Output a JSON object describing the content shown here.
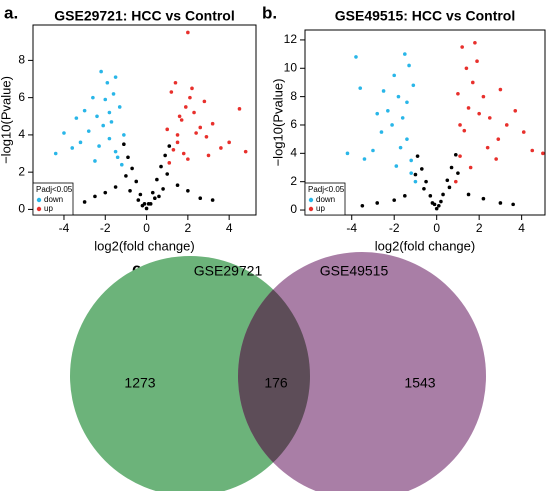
{
  "chart_data": [
    {
      "type": "scatter",
      "panel_label": "a.",
      "title": "GSE29721: HCC vs Control",
      "x_label": "log2(fold change)",
      "y_label": "−log10(Pvalue)",
      "xlim": [
        -5.5,
        5.3
      ],
      "ylim": [
        -0.3,
        9.9
      ],
      "xticks": [
        -4,
        -2,
        0,
        2,
        4
      ],
      "yticks": [
        0,
        2,
        4,
        6,
        8
      ],
      "legend_title": "Padj<0.05",
      "legend": "bottom-left",
      "series": [
        {
          "color": "#000000",
          "x": [
            -1.1,
            -0.9,
            -0.7,
            -0.5,
            -0.3,
            -0.1,
            0,
            0.1,
            0.3,
            0.5,
            0.7,
            0.9,
            1.1,
            -1.5,
            -2,
            -2.5,
            1.5,
            2,
            2.6,
            -0.8,
            0.8,
            -0.4,
            0.4,
            -1.0,
            1.0,
            -3,
            3.2,
            -0.2,
            0.2,
            0.6
          ],
          "values": [
            3.5,
            2.8,
            2.2,
            1.5,
            0.8,
            0.3,
            0.05,
            0.3,
            0.9,
            1.6,
            2.3,
            2.9,
            3.4,
            1.2,
            0.9,
            0.7,
            1.3,
            1.0,
            0.6,
            1.0,
            1.1,
            0.5,
            0.6,
            1.8,
            1.9,
            0.4,
            0.5,
            0.2,
            0.3,
            0.7
          ]
        },
        {
          "name": "down",
          "color": "#29b6e8",
          "x": [
            -1.2,
            -1.5,
            -1.8,
            -2.1,
            -2.4,
            -2.8,
            -3.2,
            -3.6,
            -4.0,
            -4.4,
            -1.3,
            -1.6,
            -1.9,
            -2.2,
            -2.6,
            -3.0,
            -1.4,
            -1.7,
            -2.0,
            -2.3,
            -1.1,
            -1.5,
            -2.5,
            -3.4,
            -1.8
          ],
          "values": [
            2.4,
            3.1,
            3.8,
            4.5,
            5.0,
            4.2,
            3.6,
            3.3,
            4.1,
            3.0,
            5.5,
            6.2,
            6.8,
            7.4,
            6.0,
            5.3,
            2.8,
            4.7,
            5.9,
            3.4,
            4.0,
            7.1,
            2.6,
            4.9,
            5.2
          ]
        },
        {
          "name": "up",
          "color": "#e8302c",
          "x": [
            1.1,
            1.3,
            1.5,
            1.7,
            1.9,
            2.1,
            2.3,
            2.6,
            2.9,
            3.2,
            3.6,
            4.0,
            4.5,
            1.2,
            1.4,
            1.6,
            1.8,
            2.0,
            2.4,
            2.8,
            1.0,
            1.5,
            2.2,
            3.0,
            4.8,
            2.0
          ],
          "values": [
            2.5,
            3.2,
            4.0,
            4.8,
            5.5,
            6.0,
            5.2,
            4.4,
            3.9,
            4.6,
            3.3,
            3.6,
            5.4,
            6.3,
            6.8,
            5.0,
            3.0,
            2.7,
            4.1,
            5.8,
            4.3,
            3.6,
            6.5,
            2.9,
            3.1,
            9.5
          ]
        }
      ]
    },
    {
      "type": "scatter",
      "panel_label": "b.",
      "title": "GSE49515: HCC vs Control",
      "x_label": "log2(fold change)",
      "y_label": "−log10(Pvalue)",
      "xlim": [
        -6.2,
        5.1
      ],
      "ylim": [
        -0.35,
        12.7
      ],
      "xticks": [
        -4,
        -2,
        0,
        2,
        4
      ],
      "yticks": [
        0,
        2,
        4,
        6,
        8,
        10,
        12
      ],
      "legend_title": "Padj<0.05",
      "legend": "bottom-left",
      "series": [
        {
          "color": "#000000",
          "x": [
            -0.9,
            -0.7,
            -0.5,
            -0.3,
            -0.1,
            0,
            0.1,
            0.3,
            0.5,
            0.7,
            0.9,
            -1.5,
            -2,
            -2.8,
            1.5,
            2.2,
            3,
            -0.6,
            0.6,
            -0.2,
            0.2,
            -3.5,
            3.6,
            -1,
            1
          ],
          "values": [
            3.8,
            2.9,
            2.0,
            1.0,
            0.4,
            0.1,
            0.3,
            1.1,
            2.1,
            3.0,
            3.9,
            1.0,
            0.7,
            0.5,
            1.1,
            0.8,
            0.5,
            1.5,
            1.6,
            0.5,
            0.6,
            0.3,
            0.4,
            2.5,
            2.6
          ]
        },
        {
          "name": "down",
          "color": "#29b6e8",
          "x": [
            -1.0,
            -1.2,
            -1.4,
            -1.6,
            -1.8,
            -2.0,
            -2.3,
            -2.6,
            -3.0,
            -3.4,
            -3.8,
            -4.2,
            -1.1,
            -1.3,
            -1.5,
            -1.7,
            -2.1,
            -2.5,
            -1.2,
            -1.9,
            -2.8,
            -1.4,
            -3.6
          ],
          "values": [
            2.0,
            3.5,
            5.0,
            6.5,
            8.0,
            9.5,
            7.0,
            5.5,
            4.2,
            3.6,
            10.8,
            4.0,
            8.8,
            10.2,
            11.0,
            4.4,
            6.0,
            8.4,
            2.6,
            3.1,
            6.8,
            7.6,
            8.6
          ]
        },
        {
          "name": "up",
          "color": "#e8302c",
          "x": [
            0.9,
            1.1,
            1.3,
            1.5,
            1.7,
            1.9,
            2.2,
            2.5,
            2.9,
            3.3,
            3.7,
            4.1,
            4.5,
            5.0,
            1.0,
            1.2,
            1.4,
            1.6,
            2.0,
            2.4,
            2.8,
            1.1,
            1.8,
            3.0
          ],
          "values": [
            2.0,
            3.8,
            5.6,
            7.2,
            9.0,
            10.5,
            8.0,
            6.5,
            5.0,
            6.0,
            7.0,
            5.5,
            4.2,
            4.0,
            8.2,
            11.5,
            10.0,
            3.0,
            6.8,
            4.4,
            3.6,
            6.0,
            11.8,
            8.5
          ]
        }
      ]
    },
    {
      "type": "venn",
      "panel_label": "c.",
      "sets": [
        {
          "name": "GSE29721",
          "color": "#6cb37a"
        },
        {
          "name": "GSE49515",
          "color": "#a97ea6"
        }
      ],
      "overlap_color": "#5d4d58",
      "values": [
        1273,
        176,
        1543
      ]
    }
  ]
}
